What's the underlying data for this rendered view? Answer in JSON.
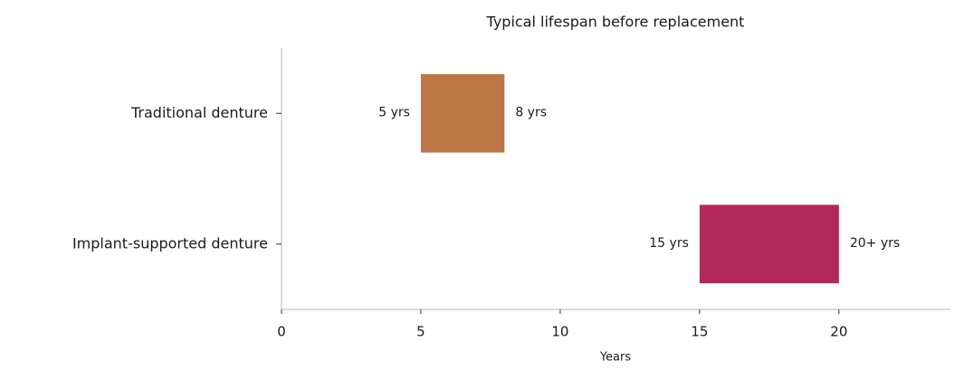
{
  "chart_data": {
    "type": "range_bar",
    "title": "Typical lifespan before replacement",
    "xlabel": "Years",
    "categories": [
      "Traditional denture",
      "Implant-supported denture"
    ],
    "starts": [
      5,
      15
    ],
    "ends": [
      8,
      20
    ],
    "start_labels": [
      "5 yrs",
      "15 yrs"
    ],
    "end_labels": [
      "8 yrs",
      "20+ yrs"
    ],
    "colors": [
      "#bd7646",
      "#b2285a"
    ],
    "xlim": [
      0,
      24
    ],
    "xticks": [
      0,
      5,
      10,
      15,
      20
    ]
  }
}
